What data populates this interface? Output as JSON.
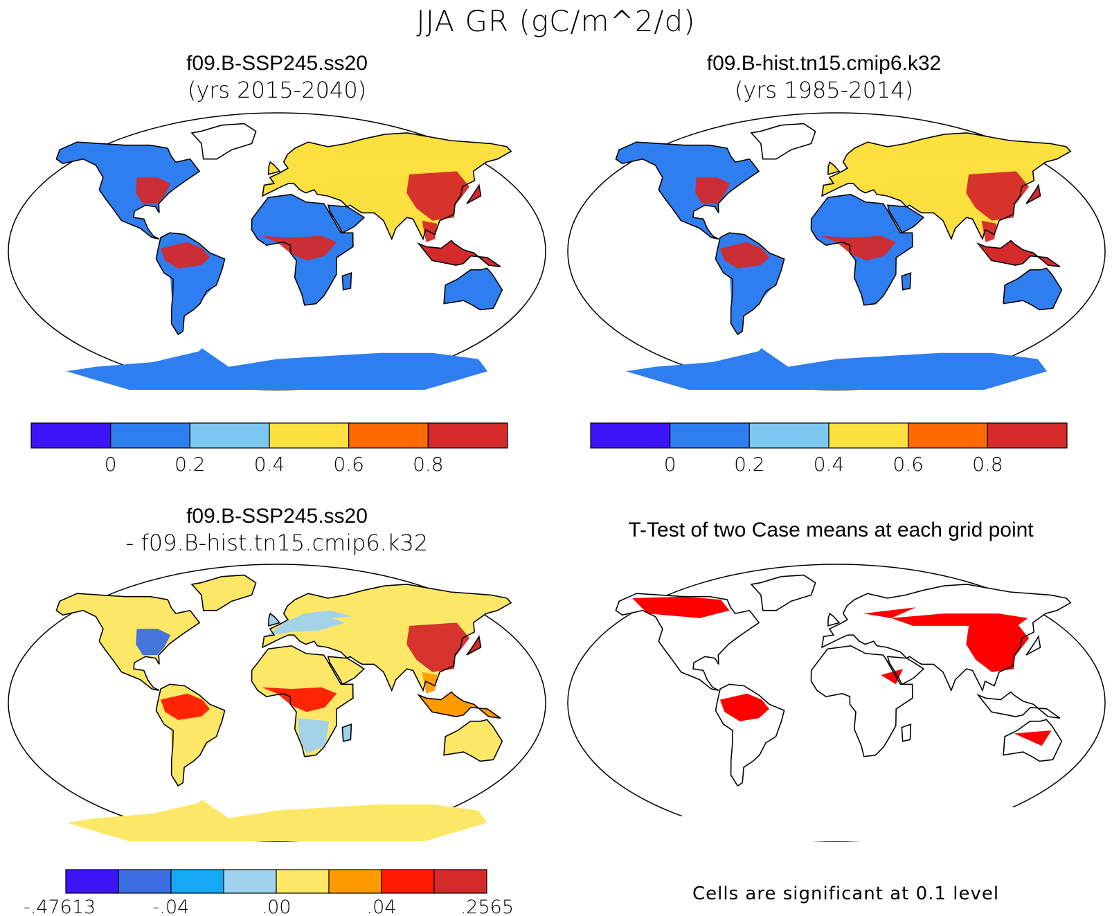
{
  "title": "JJA GR (gC/m^2/d)",
  "panels": [
    {
      "id": "case1",
      "title": "f09.B-SSP245.ss20",
      "subtitle": "(yrs 2015-2040)",
      "colorbar": {
        "colors": [
          "#3d14f5",
          "#2f7ef0",
          "#7cc8f0",
          "#fce040",
          "#ff6a00",
          "#d42a2a"
        ],
        "labels": [
          "0",
          "0.2",
          "0.4",
          "0.6",
          "0.8"
        ]
      },
      "field_levels": {
        "arctic_land": 1,
        "north_america": 1,
        "us_east": 5,
        "europe": 3,
        "siberia": 3,
        "east_asia": 5,
        "sahara": 1,
        "central_africa": 5,
        "southern_africa": 1,
        "amazon": 5,
        "south_america": 1,
        "australia": 1,
        "antarctica": 1,
        "se_asia": 5
      }
    },
    {
      "id": "case2",
      "title": "f09.B-hist.tn15.cmip6.k32",
      "subtitle": "(yrs 1985-2014)",
      "colorbar": {
        "colors": [
          "#3d14f5",
          "#2f7ef0",
          "#7cc8f0",
          "#fce040",
          "#ff6a00",
          "#d42a2a"
        ],
        "labels": [
          "0",
          "0.2",
          "0.4",
          "0.6",
          "0.8"
        ]
      },
      "field_levels": {
        "arctic_land": 1,
        "north_america": 1,
        "us_east": 5,
        "europe": 3,
        "siberia": 3,
        "east_asia": 5,
        "sahara": 1,
        "central_africa": 5,
        "southern_africa": 1,
        "amazon": 5,
        "south_america": 1,
        "australia": 1,
        "antarctica": 1,
        "se_asia": 5
      }
    },
    {
      "id": "diff",
      "title": "f09.B-SSP245.ss20",
      "subtitle": "- f09.B-hist.tn15.cmip6.k32",
      "colorbar": {
        "colors": [
          "#3d14f5",
          "#3b6ee0",
          "#14a8f5",
          "#9ed2ee",
          "#fce866",
          "#ff9a00",
          "#ff1a00",
          "#d42a2a"
        ],
        "labels": [
          "-.47613",
          "-.04",
          ".00",
          ".04",
          ".2565"
        ]
      },
      "field_levels": {
        "arctic_land": 4,
        "north_america": 4,
        "us_east": 1,
        "europe": 3,
        "siberia": 4,
        "east_asia": 7,
        "sahara": 4,
        "central_africa": 6,
        "southern_africa": 3,
        "amazon": 6,
        "south_america": 4,
        "australia": 4,
        "antarctica": 4,
        "se_asia": 5
      }
    },
    {
      "id": "ttest",
      "title": "T-Test of two Case means at each grid point",
      "note": "Cells are significant at 0.1 level",
      "significance_color": "#ff0000"
    }
  ]
}
